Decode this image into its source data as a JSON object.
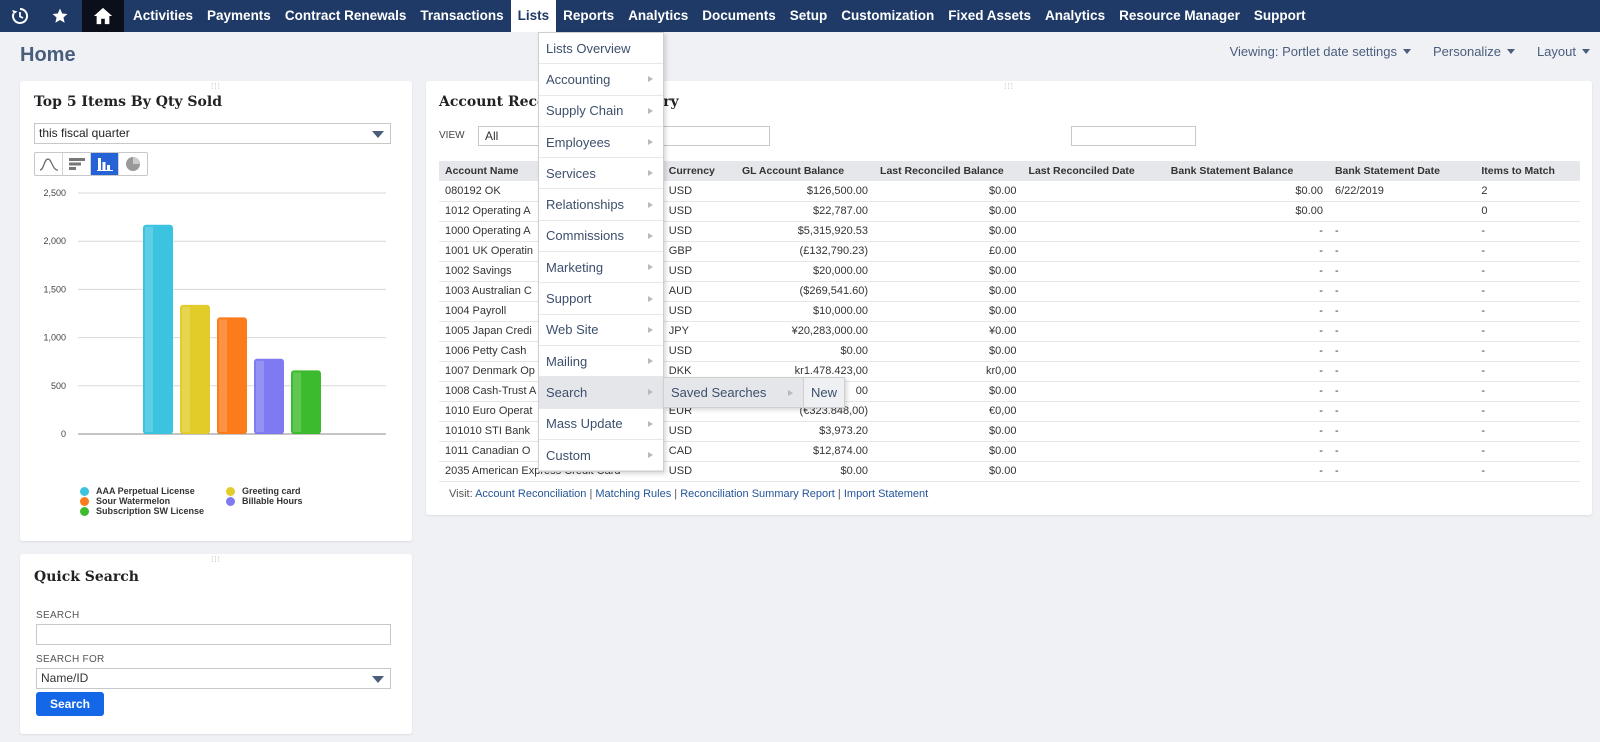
{
  "nav": {
    "items": [
      "Activities",
      "Payments",
      "Contract Renewals",
      "Transactions",
      "Lists",
      "Reports",
      "Analytics",
      "Documents",
      "Setup",
      "Customization",
      "Fixed Assets",
      "Analytics",
      "Resource Manager",
      "Support"
    ],
    "active": "Lists",
    "icons": [
      "recent-icon",
      "star-icon",
      "home-icon"
    ]
  },
  "page": {
    "title": "Home",
    "viewing": "Viewing: Portlet date settings",
    "personalize": "Personalize",
    "layout": "Layout"
  },
  "top5": {
    "title": "Top 5 Items By Qty Sold",
    "period": "this fiscal quarter",
    "chart_types": [
      "line-chart-icon",
      "horizontal-bar-icon",
      "column-chart-icon",
      "pie-chart-icon"
    ],
    "active_chart_type": "column-chart-icon"
  },
  "chart_data": {
    "type": "bar",
    "categories": [
      "AAA Perpetual License",
      "Greeting card",
      "Sour Watermelon",
      "Billable Hours",
      "Subscription SW License"
    ],
    "values": [
      2170,
      1340,
      1210,
      780,
      660
    ],
    "colors": [
      "#3cc3df",
      "#e1cc2a",
      "#fc7c1c",
      "#7f7af2",
      "#3dbb2e"
    ],
    "yticks": [
      "2,500",
      "2,000",
      "1,500",
      "1,000",
      "500",
      "0"
    ],
    "ylim": [
      0,
      2500
    ],
    "grid": true,
    "legend": "bottom"
  },
  "quick_search": {
    "title": "Quick Search",
    "search_label": "SEARCH",
    "search_value": "",
    "search_for_label": "SEARCH FOR",
    "search_for_value": "Name/ID",
    "button": "Search"
  },
  "recon": {
    "title_left": "Account Reco",
    "title_right": "ary",
    "view_label": "VIEW",
    "view_value": "All",
    "columns": [
      "Account Name",
      "Currency",
      "GL Account Balance",
      "Last Reconciled Balance",
      "Last Reconciled Date",
      "Bank Statement Balance",
      "Bank Statement Date",
      "Items to Match"
    ],
    "rows": [
      [
        "080192 OK",
        "USD",
        "$126,500.00",
        "$0.00",
        "",
        "$0.00",
        "6/22/2019",
        "2"
      ],
      [
        "1012 Operating A",
        "USD",
        "$22,787.00",
        "$0.00",
        "",
        "$0.00",
        "",
        "0"
      ],
      [
        "1000 Operating A",
        "USD",
        "$5,315,920.53",
        "$0.00",
        "",
        "-",
        "-",
        "-"
      ],
      [
        "1001 UK Operatin",
        "GBP",
        "(£132,790.23)",
        "£0.00",
        "",
        "-",
        "-",
        "-"
      ],
      [
        "1002 Savings",
        "USD",
        "$20,000.00",
        "$0.00",
        "",
        "-",
        "-",
        "-"
      ],
      [
        "1003 Australian C",
        "AUD",
        "($269,541.60)",
        "$0.00",
        "",
        "-",
        "-",
        "-"
      ],
      [
        "1004 Payroll",
        "USD",
        "$10,000.00",
        "$0.00",
        "",
        "-",
        "-",
        "-"
      ],
      [
        "1005 Japan Credi",
        "JPY",
        "¥20,283,000.00",
        "¥0.00",
        "",
        "-",
        "-",
        "-"
      ],
      [
        "1006 Petty Cash",
        "USD",
        "$0.00",
        "$0.00",
        "",
        "-",
        "-",
        "-"
      ],
      [
        "1007 Denmark Op",
        "DKK",
        "kr1.478.423,00",
        "kr0,00",
        "",
        "-",
        "-",
        "-"
      ],
      [
        "1008 Cash-Trust A",
        "USD",
        "00",
        "$0.00",
        "",
        "-",
        "-",
        "-"
      ],
      [
        "1010 Euro Operat",
        "EUR",
        "(€323.848,00)",
        "€0,00",
        "",
        "-",
        "-",
        "-"
      ],
      [
        "101010 STI Bank",
        "USD",
        "$3,973.20",
        "$0.00",
        "",
        "-",
        "-",
        "-"
      ],
      [
        "1011 Canadian O",
        "CAD",
        "$12,874.00",
        "$0.00",
        "",
        "-",
        "-",
        "-"
      ],
      [
        "2035 American Express Credit Card",
        "USD",
        "$0.00",
        "$0.00",
        "",
        "-",
        "-",
        "-"
      ]
    ],
    "visit_prefix": "Visit:",
    "visit_links": [
      "Account Reconciliation",
      "Matching Rules",
      "Reconciliation Summary Report",
      "Import Statement"
    ]
  },
  "menu": {
    "items": [
      "Lists Overview",
      "Accounting",
      "Supply Chain",
      "Employees",
      "Services",
      "Relationships",
      "Commissions",
      "Marketing",
      "Support",
      "Web Site",
      "Mailing",
      "Search",
      "Mass Update",
      "Custom"
    ],
    "hovered": "Search",
    "submenu": [
      "Saved Searches",
      "New"
    ]
  }
}
